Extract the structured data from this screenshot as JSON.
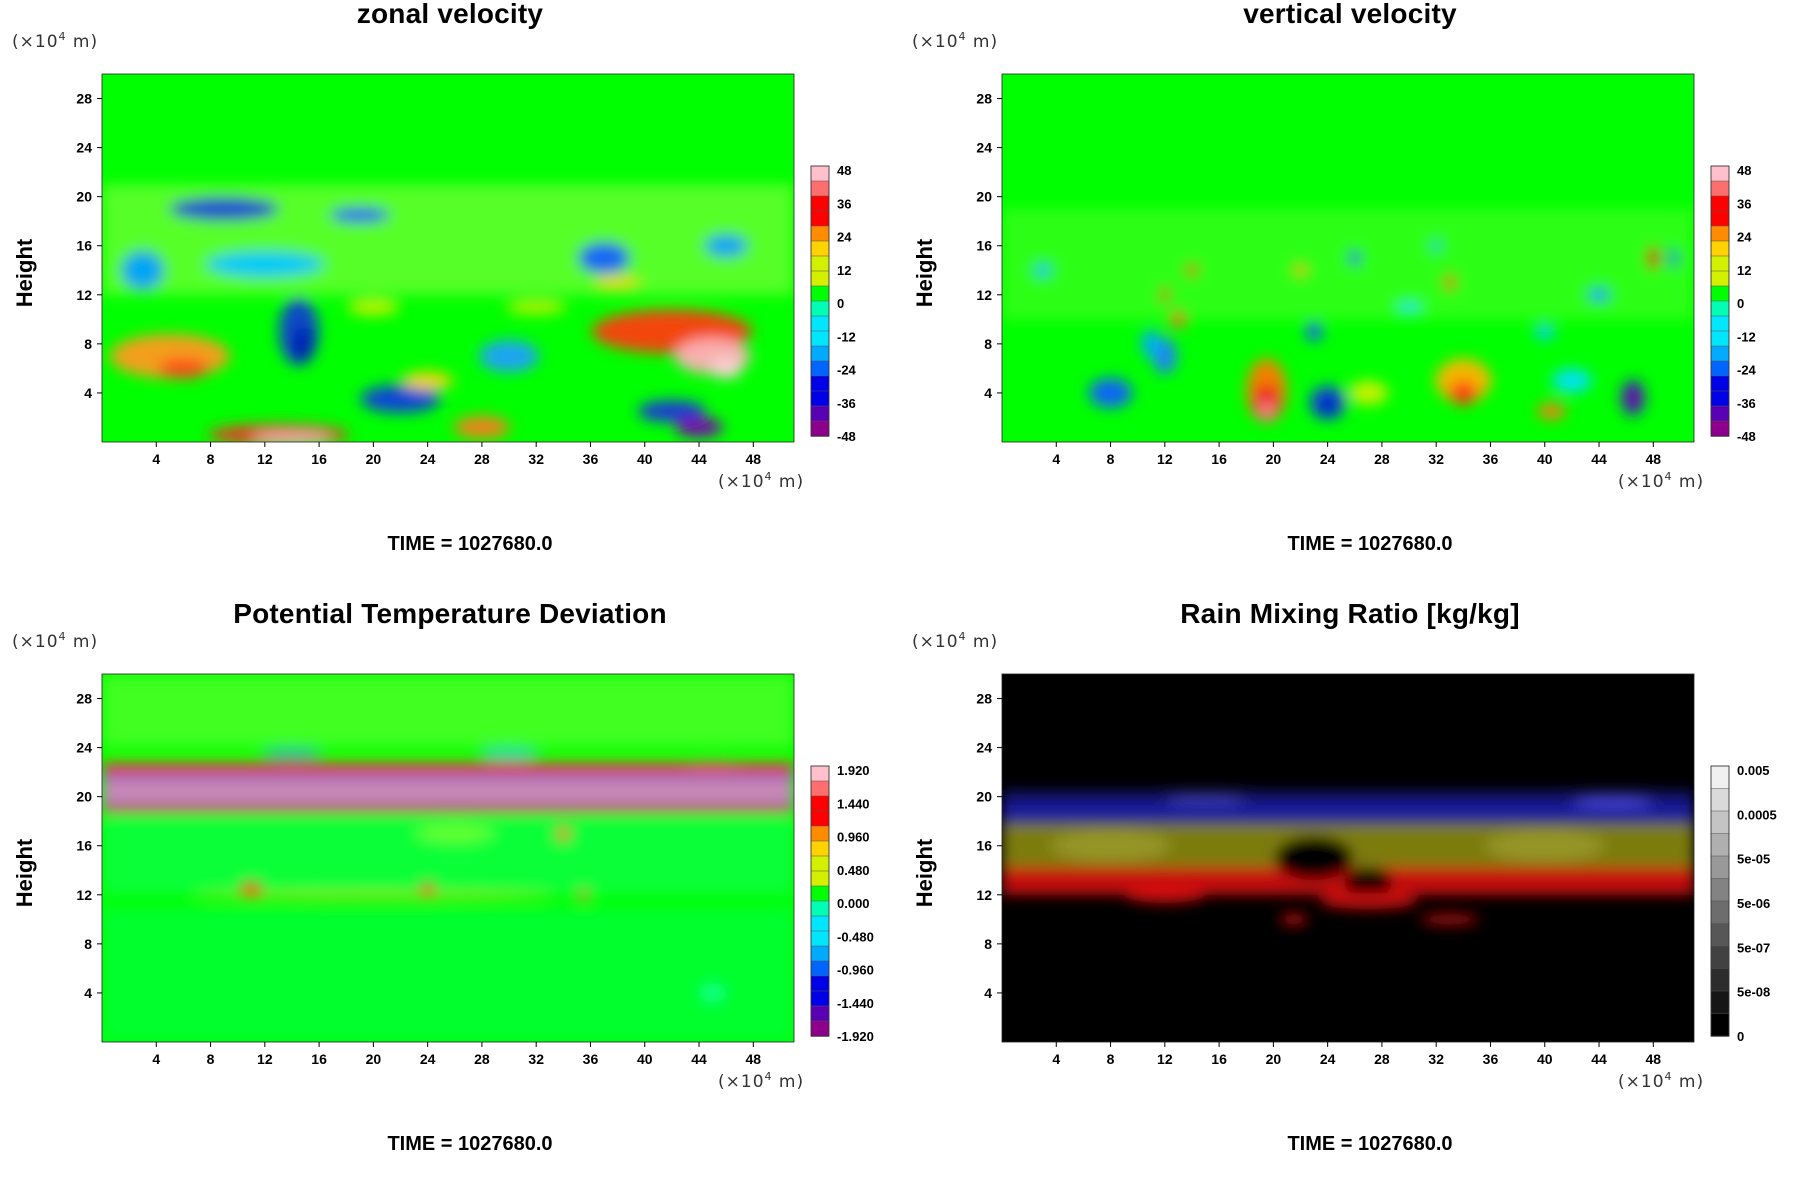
{
  "chart_data": [
    {
      "type": "heatmap",
      "title": "zonal velocity",
      "ylabel": "Height",
      "x_unit_label": "(×10",
      "x_unit_exp": "4",
      "x_unit_tail": " m)",
      "y_unit_label": "(×10",
      "y_unit_exp": "4",
      "y_unit_tail": " m)",
      "footer": "TIME = 1027680.0",
      "xlim": [
        0,
        51
      ],
      "ylim": [
        0,
        30
      ],
      "xticks": [
        "4",
        "8",
        "12",
        "16",
        "20",
        "24",
        "28",
        "32",
        "36",
        "40",
        "44",
        "48"
      ],
      "yticks": [
        "4",
        "8",
        "12",
        "16",
        "20",
        "24",
        "28"
      ],
      "colorbar_ticks": [
        "48",
        "36",
        "24",
        "12",
        "0",
        "-12",
        "-24",
        "-36",
        "-48"
      ],
      "colormap": "rainbow",
      "background_color": "#00ff00"
    },
    {
      "type": "heatmap",
      "title": "vertical velocity",
      "ylabel": "Height",
      "x_unit_label": "(×10",
      "x_unit_exp": "4",
      "x_unit_tail": " m)",
      "y_unit_label": "(×10",
      "y_unit_exp": "4",
      "y_unit_tail": " m)",
      "footer": "TIME = 1027680.0",
      "xlim": [
        0,
        51
      ],
      "ylim": [
        0,
        30
      ],
      "xticks": [
        "4",
        "8",
        "12",
        "16",
        "20",
        "24",
        "28",
        "32",
        "36",
        "40",
        "44",
        "48"
      ],
      "yticks": [
        "4",
        "8",
        "12",
        "16",
        "20",
        "24",
        "28"
      ],
      "colorbar_ticks": [
        "48",
        "36",
        "24",
        "12",
        "0",
        "-12",
        "-24",
        "-36",
        "-48"
      ],
      "colormap": "rainbow",
      "background_color": "#00ff00"
    },
    {
      "type": "heatmap",
      "title": "Potential Temperature Deviation",
      "ylabel": "Height",
      "x_unit_label": "(×10",
      "x_unit_exp": "4",
      "x_unit_tail": " m)",
      "y_unit_label": "(×10",
      "y_unit_exp": "4",
      "y_unit_tail": " m)",
      "footer": "TIME = 1027680.0",
      "xlim": [
        0,
        51
      ],
      "ylim": [
        0,
        30
      ],
      "xticks": [
        "4",
        "8",
        "12",
        "16",
        "20",
        "24",
        "28",
        "32",
        "36",
        "40",
        "44",
        "48"
      ],
      "yticks": [
        "4",
        "8",
        "12",
        "16",
        "20",
        "24",
        "28"
      ],
      "colorbar_ticks": [
        "1.920",
        "1.440",
        "0.960",
        "0.480",
        "0.000",
        "-0.480",
        "-0.960",
        "-1.440",
        "-1.920"
      ],
      "colormap": "rainbow",
      "background_color": "#00ff00"
    },
    {
      "type": "heatmap",
      "title": "Rain Mixing Ratio [kg/kg]",
      "ylabel": "Height",
      "x_unit_label": "(×10",
      "x_unit_exp": "4",
      "x_unit_tail": " m)",
      "y_unit_label": "(×10",
      "y_unit_exp": "4",
      "y_unit_tail": " m)",
      "footer": "TIME = 1027680.0",
      "xlim": [
        0,
        51
      ],
      "ylim": [
        0,
        30
      ],
      "xticks": [
        "4",
        "8",
        "12",
        "16",
        "20",
        "24",
        "28",
        "32",
        "36",
        "40",
        "44",
        "48"
      ],
      "yticks": [
        "4",
        "8",
        "12",
        "16",
        "20",
        "24",
        "28"
      ],
      "colorbar_ticks": [
        "0.005",
        "0.0005",
        "5e-05",
        "5e-06",
        "5e-07",
        "5e-08",
        "0"
      ],
      "colormap": "grayscale",
      "background_color": "#000000"
    }
  ]
}
